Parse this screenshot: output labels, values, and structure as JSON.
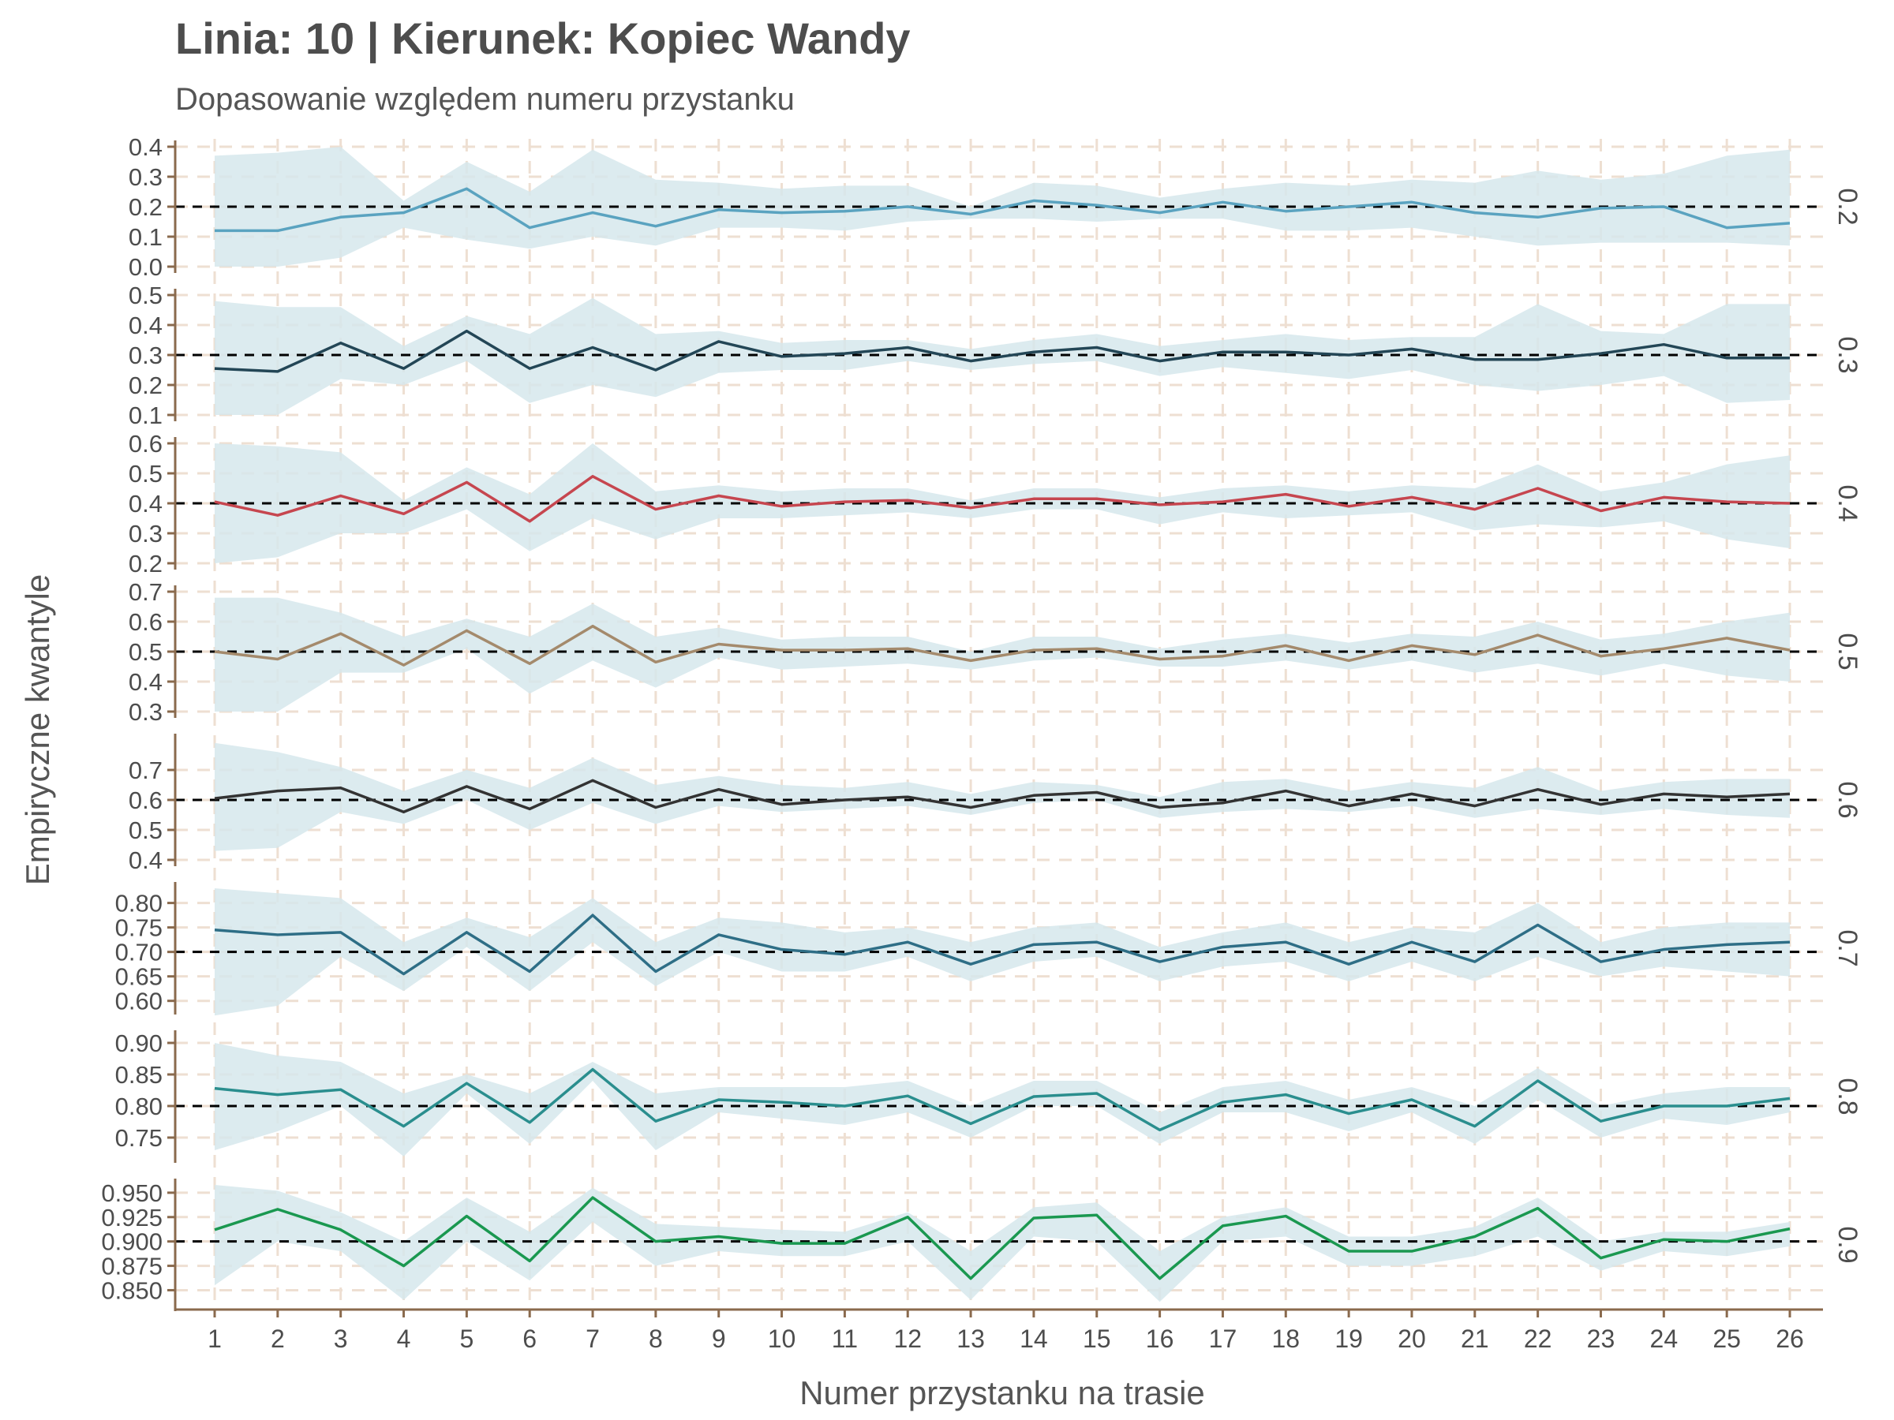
{
  "chart_data": {
    "type": "line",
    "title": "Linia: 10 | Kierunek: Kopiec Wandy",
    "subtitle": "Dopasowanie względem numeru przystanku",
    "xlabel": "Numer przystanku na trasie",
    "ylabel": "Empiryczne kwantyle",
    "x": [
      1,
      2,
      3,
      4,
      5,
      6,
      7,
      8,
      9,
      10,
      11,
      12,
      13,
      14,
      15,
      16,
      17,
      18,
      19,
      20,
      21,
      22,
      23,
      24,
      25,
      26
    ],
    "grid": true,
    "colors": {
      "band": "#d6e7ec",
      "grid": "#eedfd2",
      "axis": "#8a6a4d",
      "text": "#4d4d4d",
      "reference": "#000000"
    },
    "panels": [
      {
        "strip": "0.2",
        "reference": 0.2,
        "color": "#5aa3c0",
        "ylim": [
          0.0,
          0.4
        ],
        "yticks": [
          "0.0",
          "0.1",
          "0.2",
          "0.3",
          "0.4"
        ],
        "values": [
          0.12,
          0.12,
          0.165,
          0.18,
          0.26,
          0.13,
          0.18,
          0.135,
          0.19,
          0.18,
          0.185,
          0.2,
          0.175,
          0.22,
          0.205,
          0.18,
          0.215,
          0.185,
          0.2,
          0.215,
          0.18,
          0.165,
          0.195,
          0.2,
          0.13,
          0.145
        ],
        "band_upper": [
          0.37,
          0.38,
          0.4,
          0.22,
          0.35,
          0.25,
          0.39,
          0.29,
          0.28,
          0.26,
          0.27,
          0.27,
          0.2,
          0.28,
          0.27,
          0.23,
          0.26,
          0.28,
          0.27,
          0.29,
          0.28,
          0.32,
          0.29,
          0.31,
          0.37,
          0.39
        ],
        "band_lower": [
          0.0,
          0.0,
          0.03,
          0.13,
          0.09,
          0.06,
          0.1,
          0.07,
          0.13,
          0.13,
          0.12,
          0.15,
          0.16,
          0.16,
          0.15,
          0.16,
          0.16,
          0.12,
          0.12,
          0.13,
          0.1,
          0.07,
          0.08,
          0.08,
          0.08,
          0.07
        ]
      },
      {
        "strip": "0.3",
        "reference": 0.3,
        "color": "#234656",
        "ylim": [
          0.1,
          0.5
        ],
        "yticks": [
          "0.1",
          "0.2",
          "0.3",
          "0.4",
          "0.5"
        ],
        "values": [
          0.255,
          0.245,
          0.34,
          0.255,
          0.38,
          0.255,
          0.325,
          0.25,
          0.345,
          0.295,
          0.305,
          0.325,
          0.28,
          0.31,
          0.325,
          0.28,
          0.31,
          0.31,
          0.3,
          0.32,
          0.285,
          0.285,
          0.305,
          0.335,
          0.29,
          0.29
        ],
        "band_upper": [
          0.48,
          0.46,
          0.46,
          0.33,
          0.43,
          0.37,
          0.49,
          0.37,
          0.38,
          0.34,
          0.35,
          0.35,
          0.32,
          0.35,
          0.37,
          0.33,
          0.35,
          0.37,
          0.35,
          0.36,
          0.36,
          0.47,
          0.38,
          0.37,
          0.47,
          0.47
        ],
        "band_lower": [
          0.1,
          0.1,
          0.22,
          0.2,
          0.28,
          0.14,
          0.2,
          0.16,
          0.24,
          0.25,
          0.25,
          0.28,
          0.25,
          0.27,
          0.28,
          0.23,
          0.26,
          0.24,
          0.22,
          0.25,
          0.2,
          0.18,
          0.2,
          0.23,
          0.14,
          0.15
        ]
      },
      {
        "strip": "0.4",
        "reference": 0.4,
        "color": "#c6464f",
        "ylim": [
          0.2,
          0.6
        ],
        "yticks": [
          "0.2",
          "0.3",
          "0.4",
          "0.5",
          "0.6"
        ],
        "values": [
          0.405,
          0.36,
          0.425,
          0.365,
          0.47,
          0.34,
          0.49,
          0.38,
          0.425,
          0.39,
          0.405,
          0.41,
          0.385,
          0.415,
          0.415,
          0.395,
          0.405,
          0.43,
          0.39,
          0.42,
          0.38,
          0.45,
          0.375,
          0.42,
          0.405,
          0.4
        ],
        "band_upper": [
          0.6,
          0.59,
          0.57,
          0.41,
          0.52,
          0.43,
          0.6,
          0.44,
          0.46,
          0.44,
          0.45,
          0.45,
          0.41,
          0.45,
          0.45,
          0.42,
          0.45,
          0.46,
          0.44,
          0.46,
          0.45,
          0.53,
          0.44,
          0.47,
          0.53,
          0.56
        ],
        "band_lower": [
          0.2,
          0.22,
          0.3,
          0.3,
          0.38,
          0.24,
          0.35,
          0.28,
          0.35,
          0.35,
          0.36,
          0.37,
          0.35,
          0.38,
          0.38,
          0.33,
          0.37,
          0.35,
          0.36,
          0.37,
          0.31,
          0.33,
          0.32,
          0.34,
          0.28,
          0.25
        ]
      },
      {
        "strip": "0.5",
        "reference": 0.5,
        "color": "#a48a6c",
        "ylim": [
          0.3,
          0.7
        ],
        "yticks": [
          "0.3",
          "0.4",
          "0.5",
          "0.6",
          "0.7"
        ],
        "values": [
          0.5,
          0.475,
          0.56,
          0.455,
          0.57,
          0.46,
          0.585,
          0.465,
          0.525,
          0.505,
          0.505,
          0.51,
          0.47,
          0.505,
          0.51,
          0.475,
          0.485,
          0.52,
          0.47,
          0.52,
          0.49,
          0.555,
          0.485,
          0.51,
          0.545,
          0.505
        ],
        "band_upper": [
          0.68,
          0.68,
          0.63,
          0.55,
          0.61,
          0.55,
          0.66,
          0.55,
          0.58,
          0.54,
          0.55,
          0.55,
          0.5,
          0.55,
          0.55,
          0.51,
          0.54,
          0.56,
          0.53,
          0.56,
          0.55,
          0.6,
          0.54,
          0.56,
          0.6,
          0.63
        ],
        "band_lower": [
          0.3,
          0.3,
          0.43,
          0.43,
          0.51,
          0.36,
          0.47,
          0.38,
          0.48,
          0.44,
          0.45,
          0.46,
          0.44,
          0.47,
          0.48,
          0.45,
          0.45,
          0.47,
          0.44,
          0.47,
          0.43,
          0.46,
          0.42,
          0.46,
          0.42,
          0.4
        ]
      },
      {
        "strip": "0.6",
        "reference": 0.6,
        "color": "#333333",
        "ylim": [
          0.4,
          0.8
        ],
        "yticks": [
          "0.4",
          "0.5",
          "0.6",
          "0.7"
        ],
        "values": [
          0.605,
          0.63,
          0.64,
          0.56,
          0.645,
          0.57,
          0.665,
          0.575,
          0.635,
          0.585,
          0.6,
          0.61,
          0.575,
          0.615,
          0.625,
          0.575,
          0.59,
          0.63,
          0.58,
          0.62,
          0.58,
          0.635,
          0.585,
          0.62,
          0.61,
          0.62
        ],
        "band_upper": [
          0.79,
          0.76,
          0.71,
          0.63,
          0.7,
          0.64,
          0.74,
          0.65,
          0.68,
          0.65,
          0.64,
          0.66,
          0.62,
          0.66,
          0.65,
          0.61,
          0.66,
          0.67,
          0.63,
          0.66,
          0.64,
          0.71,
          0.63,
          0.66,
          0.67,
          0.67
        ],
        "band_lower": [
          0.43,
          0.44,
          0.56,
          0.52,
          0.6,
          0.5,
          0.59,
          0.52,
          0.58,
          0.56,
          0.57,
          0.58,
          0.55,
          0.59,
          0.6,
          0.54,
          0.56,
          0.57,
          0.56,
          0.58,
          0.54,
          0.57,
          0.55,
          0.57,
          0.55,
          0.54
        ]
      },
      {
        "strip": "0.7",
        "reference": 0.7,
        "color": "#2e6e86",
        "ylim": [
          0.585,
          0.83
        ],
        "yticks": [
          "0.60",
          "0.65",
          "0.70",
          "0.75",
          "0.80"
        ],
        "values": [
          0.745,
          0.735,
          0.74,
          0.655,
          0.74,
          0.66,
          0.775,
          0.66,
          0.735,
          0.705,
          0.695,
          0.72,
          0.675,
          0.715,
          0.72,
          0.68,
          0.71,
          0.72,
          0.675,
          0.72,
          0.68,
          0.755,
          0.68,
          0.705,
          0.715,
          0.72
        ],
        "band_upper": [
          0.83,
          0.82,
          0.81,
          0.72,
          0.77,
          0.73,
          0.81,
          0.72,
          0.77,
          0.76,
          0.74,
          0.75,
          0.72,
          0.75,
          0.76,
          0.71,
          0.74,
          0.76,
          0.72,
          0.75,
          0.74,
          0.8,
          0.72,
          0.75,
          0.76,
          0.76
        ],
        "band_lower": [
          0.57,
          0.59,
          0.69,
          0.62,
          0.71,
          0.62,
          0.72,
          0.63,
          0.7,
          0.66,
          0.66,
          0.69,
          0.64,
          0.68,
          0.69,
          0.64,
          0.67,
          0.68,
          0.64,
          0.68,
          0.64,
          0.69,
          0.65,
          0.67,
          0.66,
          0.65
        ]
      },
      {
        "strip": "0.8",
        "reference": 0.8,
        "color": "#2a8e8e",
        "ylim": [
          0.72,
          0.91
        ],
        "yticks": [
          "0.75",
          "0.80",
          "0.85",
          "0.90"
        ],
        "values": [
          0.828,
          0.818,
          0.826,
          0.768,
          0.836,
          0.774,
          0.858,
          0.776,
          0.81,
          0.806,
          0.8,
          0.816,
          0.772,
          0.815,
          0.82,
          0.762,
          0.806,
          0.818,
          0.788,
          0.81,
          0.768,
          0.84,
          0.776,
          0.8,
          0.8,
          0.812
        ],
        "band_upper": [
          0.9,
          0.88,
          0.87,
          0.82,
          0.85,
          0.82,
          0.87,
          0.82,
          0.83,
          0.83,
          0.83,
          0.84,
          0.8,
          0.84,
          0.84,
          0.79,
          0.83,
          0.84,
          0.81,
          0.83,
          0.8,
          0.86,
          0.8,
          0.82,
          0.83,
          0.83
        ],
        "band_lower": [
          0.73,
          0.76,
          0.8,
          0.72,
          0.82,
          0.74,
          0.84,
          0.73,
          0.79,
          0.78,
          0.77,
          0.79,
          0.75,
          0.8,
          0.8,
          0.74,
          0.79,
          0.79,
          0.76,
          0.79,
          0.74,
          0.81,
          0.75,
          0.78,
          0.77,
          0.79
        ]
      },
      {
        "strip": "0.9",
        "reference": 0.9,
        "color": "#1a9850",
        "ylim": [
          0.835,
          0.958
        ],
        "yticks": [
          "0.850",
          "0.875",
          "0.900",
          "0.925",
          "0.950"
        ],
        "values": [
          0.912,
          0.933,
          0.912,
          0.875,
          0.926,
          0.88,
          0.945,
          0.9,
          0.905,
          0.898,
          0.898,
          0.925,
          0.862,
          0.924,
          0.927,
          0.862,
          0.916,
          0.926,
          0.89,
          0.89,
          0.905,
          0.934,
          0.883,
          0.902,
          0.9,
          0.913
        ],
        "band_upper": [
          0.958,
          0.952,
          0.93,
          0.9,
          0.945,
          0.91,
          0.955,
          0.918,
          0.915,
          0.912,
          0.91,
          0.93,
          0.89,
          0.935,
          0.94,
          0.89,
          0.925,
          0.935,
          0.905,
          0.905,
          0.915,
          0.945,
          0.9,
          0.91,
          0.91,
          0.92
        ],
        "band_lower": [
          0.855,
          0.9,
          0.89,
          0.84,
          0.9,
          0.86,
          0.92,
          0.875,
          0.89,
          0.885,
          0.885,
          0.9,
          0.84,
          0.905,
          0.9,
          0.838,
          0.9,
          0.905,
          0.875,
          0.875,
          0.885,
          0.905,
          0.87,
          0.89,
          0.885,
          0.895
        ]
      }
    ]
  }
}
